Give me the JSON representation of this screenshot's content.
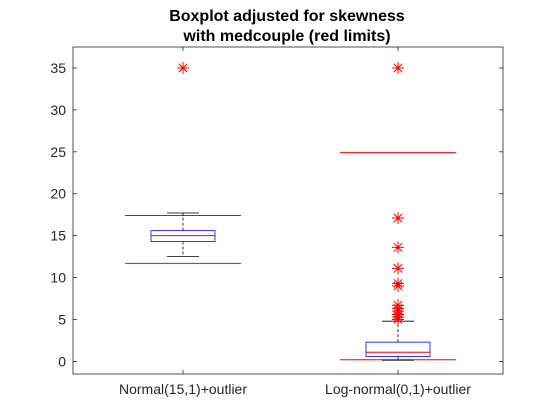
{
  "chart_data": {
    "type": "boxplot",
    "title_lines": [
      "Boxplot adjusted for skewness",
      "with medcouple (red limits)"
    ],
    "categories": [
      "Normal(15,1)+outlier",
      "Log-normal(0,1)+outlier"
    ],
    "ylim": [
      -1.5,
      37.5
    ],
    "yticks": [
      0,
      5,
      10,
      15,
      20,
      25,
      30,
      35
    ],
    "grid": false,
    "box_color": "#0000ff",
    "median_color": "#ff0000",
    "limit_color": "#ff0000",
    "outlier_color": "#ff0000",
    "groups": [
      {
        "q1": 14.3,
        "median": 15.0,
        "q3": 15.6,
        "whisker_low": 12.5,
        "whisker_high": 17.7,
        "limit_low": 11.7,
        "limit_high": 17.4,
        "outliers": [
          35.0
        ]
      },
      {
        "q1": 0.6,
        "median": 1.1,
        "q3": 2.3,
        "whisker_low": 0.15,
        "whisker_high": 4.8,
        "limit_low": 0.2,
        "limit_high": 24.9,
        "outliers": [
          35.0,
          17.1,
          13.6,
          11.1,
          9.3,
          9.0,
          6.7,
          6.3,
          6.0,
          5.6,
          5.3,
          5.0
        ]
      }
    ]
  }
}
